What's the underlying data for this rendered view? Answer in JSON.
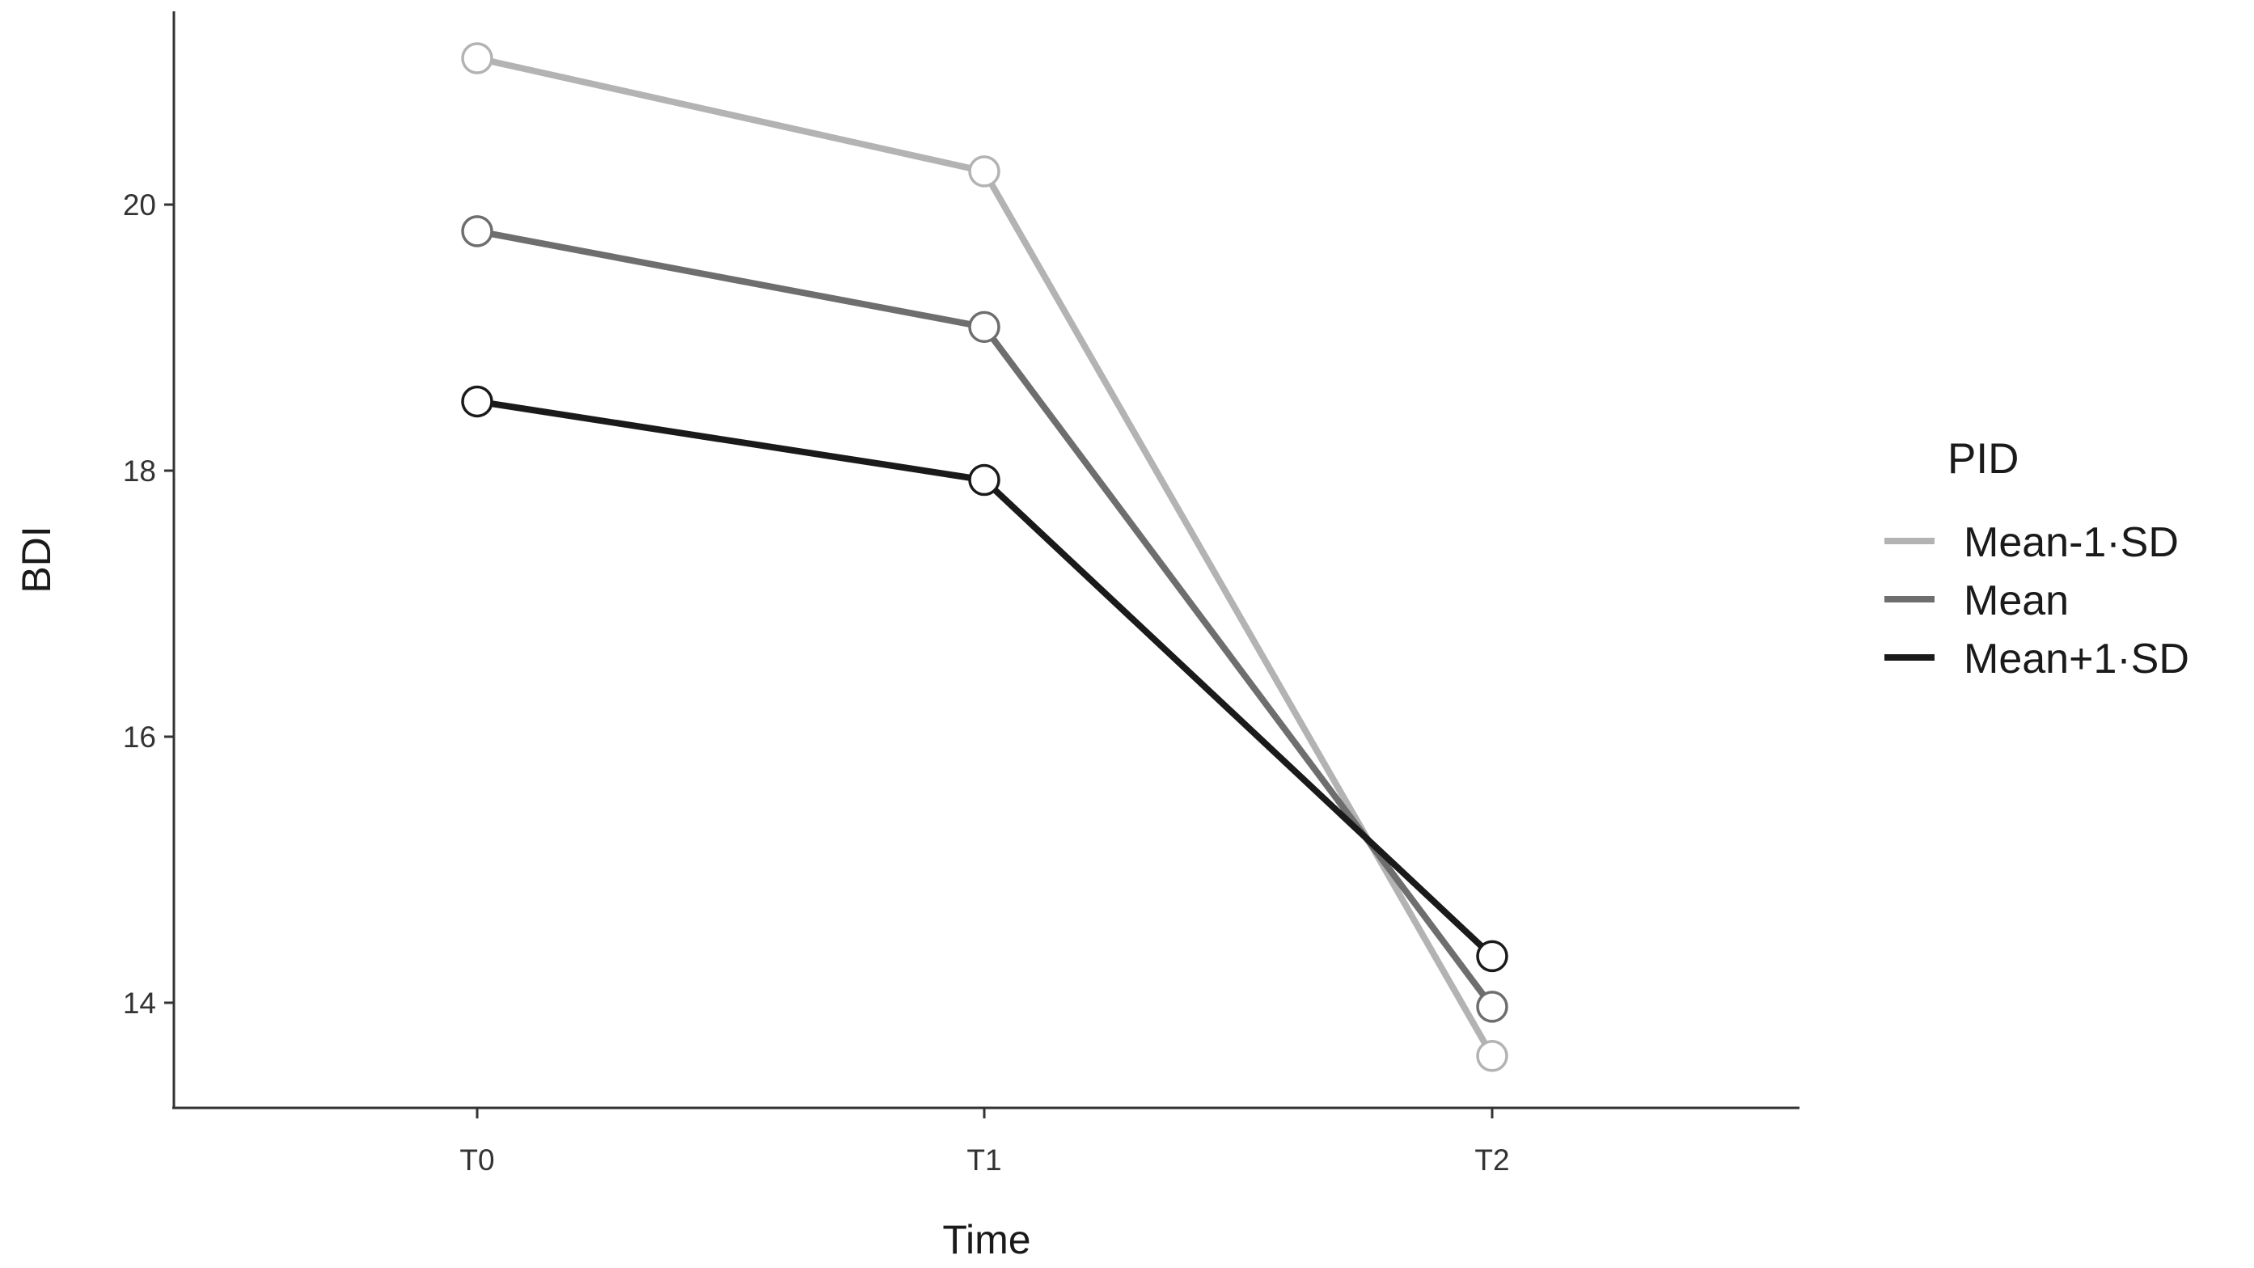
{
  "chart_data": {
    "type": "line",
    "xlabel": "Time",
    "ylabel": "BDI",
    "categories": [
      "T0",
      "T1",
      "T2"
    ],
    "yticks": [
      14,
      16,
      18,
      20
    ],
    "ylim": [
      13.3,
      21.6
    ],
    "grid": false,
    "legend": {
      "title": "PID",
      "placement": "right"
    },
    "series": [
      {
        "name": "Mean-1·SD",
        "color": "#b3b3b3",
        "values": [
          21.1,
          20.25,
          13.6
        ]
      },
      {
        "name": "Mean",
        "color": "#6e6e6e",
        "values": [
          19.8,
          19.08,
          13.97
        ]
      },
      {
        "name": "Mean+1·SD",
        "color": "#1a1a1a",
        "values": [
          18.52,
          17.93,
          14.35
        ]
      }
    ]
  }
}
